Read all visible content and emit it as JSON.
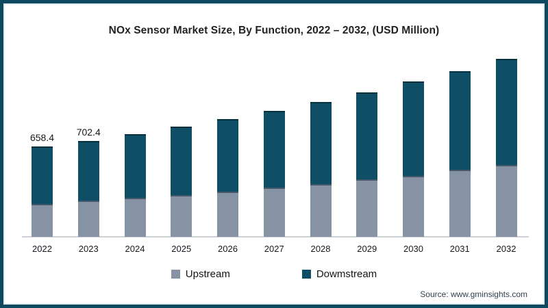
{
  "title": "NOx Sensor Market Size, By Function, 2022 – 2032, (USD Million)",
  "source": "Source: www.gminsights.com",
  "legend": {
    "items": [
      {
        "label": "Upstream",
        "color": "#8693a4"
      },
      {
        "label": "Dowmstream",
        "color": "#0e4f66"
      }
    ]
  },
  "colors": {
    "frame": "#0d4a5f",
    "upstream": "#8693a4",
    "upstream_cap": "#46586c",
    "downstream": "#0e4f66",
    "downstream_cap": "#07303f",
    "baseline": "#cdd1d6"
  },
  "chart_data": {
    "type": "bar",
    "stacked": true,
    "title": "NOx Sensor Market Size, By Function, 2022 – 2032, (USD Million)",
    "xlabel": "",
    "ylabel": "USD Million",
    "ylim": [
      0,
      1400
    ],
    "grid": false,
    "legend_position": "bottom",
    "categories": [
      "2022",
      "2023",
      "2024",
      "2025",
      "2026",
      "2027",
      "2028",
      "2029",
      "2030",
      "2031",
      "2032"
    ],
    "series": [
      {
        "name": "Upstream",
        "color": "#8693a4",
        "values": [
          238,
          265,
          285,
          305,
          330,
          360,
          383,
          420,
          445,
          490,
          525
        ]
      },
      {
        "name": "Dowmstream",
        "color": "#0e4f66",
        "values": [
          420.4,
          437.4,
          465,
          500,
          530,
          560,
          602,
          635,
          690,
          720,
          775
        ]
      }
    ],
    "totals": [
      658.4,
      702.4,
      750,
      805,
      860,
      920,
      985,
      1055,
      1135,
      1210,
      1300
    ],
    "data_labels": [
      "658.4",
      "702.4",
      "",
      "",
      "",
      "",
      "",
      "",
      "",
      "",
      ""
    ]
  }
}
